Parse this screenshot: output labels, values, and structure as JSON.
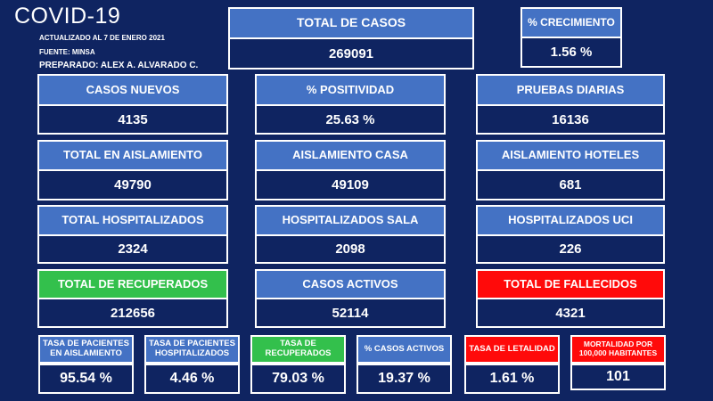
{
  "header": {
    "title": "COVID-19",
    "updated": "ACTUALIZADO AL 7 DE ENERO 2021",
    "source": "FUENTE: MINSA",
    "prepared": "PREPARADO:  ALEX A. ALVARADO  C."
  },
  "top": {
    "total_casos": {
      "label": "TOTAL DE CASOS",
      "value": "269091"
    },
    "crecimiento": {
      "label": "% CRECIMIENTO",
      "value": "1.56 %"
    }
  },
  "rows": [
    [
      {
        "label": "CASOS NUEVOS",
        "value": "4135"
      },
      {
        "label": "% POSITIVIDAD",
        "value": "25.63 %"
      },
      {
        "label": "PRUEBAS DIARIAS",
        "value": "16136"
      }
    ],
    [
      {
        "label": "TOTAL EN AISLAMIENTO",
        "value": "49790"
      },
      {
        "label": "AISLAMIENTO CASA",
        "value": "49109"
      },
      {
        "label": "AISLAMIENTO HOTELES",
        "value": "681"
      }
    ],
    [
      {
        "label": "TOTAL HOSPITALIZADOS",
        "value": "2324"
      },
      {
        "label": "HOSPITALIZADOS SALA",
        "value": "2098"
      },
      {
        "label": "HOSPITALIZADOS UCI",
        "value": "226"
      }
    ],
    [
      {
        "label": "TOTAL DE RECUPERADOS",
        "value": "212656"
      },
      {
        "label": "CASOS ACTIVOS",
        "value": "52114"
      },
      {
        "label": "TOTAL DE FALLECIDOS",
        "value": "4321"
      }
    ]
  ],
  "rates": [
    {
      "label": "TASA DE PACIENTES EN AISLAMIENTO",
      "value": "95.54 %"
    },
    {
      "label": "TASA DE PACIENTES HOSPITALIZADOS",
      "value": "4.46 %"
    },
    {
      "label": "TASA DE RECUPERADOS",
      "value": "79.03 %"
    },
    {
      "label": "% CASOS ACTIVOS",
      "value": "19.37 %"
    },
    {
      "label": "TASA DE LETALIDAD",
      "value": "1.61 %"
    },
    {
      "label": "MORTALIDAD POR 100,000 HABITANTES",
      "value": "101"
    }
  ],
  "colors": {
    "background": "#0f2461",
    "label_blue": "#4472c4",
    "green": "#33c04c",
    "red": "#ff0a0a"
  }
}
